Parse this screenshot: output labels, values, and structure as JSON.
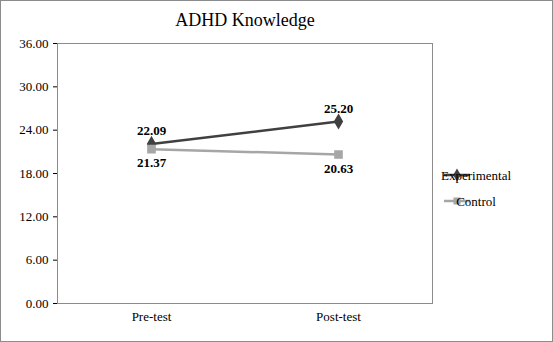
{
  "chart_data": {
    "type": "line",
    "title": "ADHD Knowledge",
    "categories": [
      "Pre-test",
      "Post-test"
    ],
    "series": [
      {
        "name": "Experimental",
        "color": "#404040",
        "marker": "diamond",
        "values": [
          22.09,
          25.2
        ],
        "value_labels": [
          "22.09",
          "25.20"
        ]
      },
      {
        "name": "Control",
        "color": "#a6a6a6",
        "marker": "square",
        "values": [
          21.37,
          20.63
        ],
        "value_labels": [
          "21.37",
          "20.63"
        ]
      }
    ],
    "ylim": [
      0,
      36
    ],
    "yticks": [
      {
        "value": 0,
        "label": "0.00"
      },
      {
        "value": 6,
        "label": "6.00"
      },
      {
        "value": 12,
        "label": "12.00"
      },
      {
        "value": 18,
        "label": "18.00"
      },
      {
        "value": 24,
        "label": "24.00"
      },
      {
        "value": 30,
        "label": "30.00"
      },
      {
        "value": 36,
        "label": "36.00"
      }
    ],
    "grid": false,
    "data_labels": true,
    "legend": "right"
  }
}
